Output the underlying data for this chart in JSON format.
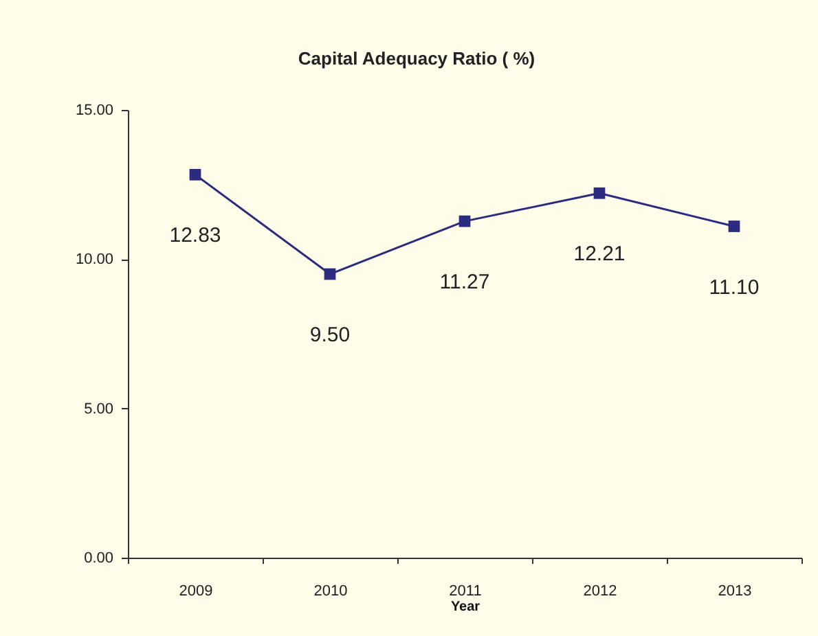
{
  "chart_data": {
    "type": "line",
    "title": "Capital Adequacy Ratio ( %)",
    "xlabel": "Year",
    "categories": [
      "2009",
      "2010",
      "2011",
      "2012",
      "2013"
    ],
    "series": [
      {
        "color": "#2b2b80",
        "values": [
          12.83,
          9.5,
          11.27,
          12.21,
          11.1
        ],
        "value_labels": [
          "12.83",
          "9.50",
          "11.27",
          "12.21",
          "11.10"
        ]
      }
    ],
    "ylim": [
      0,
      15
    ],
    "yticks": [
      {
        "value": 0,
        "label": "0.00"
      },
      {
        "value": 5,
        "label": "5.00"
      },
      {
        "value": 10,
        "label": "10.00"
      },
      {
        "value": 15,
        "label": "15.00"
      }
    ],
    "grid": false,
    "marker": "square",
    "line_style": "solid",
    "legend": false
  }
}
